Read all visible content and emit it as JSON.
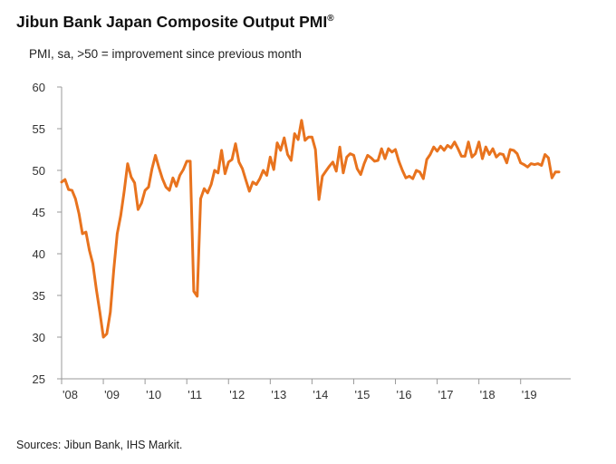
{
  "header": {
    "title": "Jibun Bank Japan Composite Output PMI",
    "title_mark": "®",
    "subtitle": "PMI, sa, >50 = improvement since previous month"
  },
  "footer": {
    "source": "Sources: Jibun Bank, IHS Markit."
  },
  "colors": {
    "line": "#e8731e",
    "axis": "#999999",
    "text": "#222222"
  },
  "chart_data": {
    "type": "line",
    "title": "Jibun Bank Japan Composite Output PMI",
    "subtitle": "PMI, sa, >50 = improvement since previous month",
    "xlabel": "",
    "ylabel": "",
    "ylim": [
      25,
      60
    ],
    "yticks": [
      25,
      30,
      35,
      40,
      45,
      50,
      55,
      60
    ],
    "xlim": [
      2008.0,
      2020.2
    ],
    "xticks": [
      {
        "label": "'08",
        "value": 2008
      },
      {
        "label": "'09",
        "value": 2009
      },
      {
        "label": "'10",
        "value": 2010
      },
      {
        "label": "'11",
        "value": 2011
      },
      {
        "label": "'12",
        "value": 2012
      },
      {
        "label": "'13",
        "value": 2013
      },
      {
        "label": "'14",
        "value": 2014
      },
      {
        "label": "'15",
        "value": 2015
      },
      {
        "label": "'16",
        "value": 2016
      },
      {
        "label": "'17",
        "value": 2017
      },
      {
        "label": "'18",
        "value": 2018
      },
      {
        "label": "'19",
        "value": 2019
      }
    ],
    "grid": false,
    "series": [
      {
        "name": "Composite Output PMI",
        "x": [
          2008.0,
          2008.083,
          2008.167,
          2008.25,
          2008.333,
          2008.417,
          2008.5,
          2008.583,
          2008.667,
          2008.75,
          2008.833,
          2008.917,
          2009.0,
          2009.083,
          2009.167,
          2009.25,
          2009.333,
          2009.417,
          2009.5,
          2009.583,
          2009.667,
          2009.75,
          2009.833,
          2009.917,
          2010.0,
          2010.083,
          2010.167,
          2010.25,
          2010.333,
          2010.417,
          2010.5,
          2010.583,
          2010.667,
          2010.75,
          2010.833,
          2010.917,
          2011.0,
          2011.083,
          2011.167,
          2011.25,
          2011.333,
          2011.417,
          2011.5,
          2011.583,
          2011.667,
          2011.75,
          2011.833,
          2011.917,
          2012.0,
          2012.083,
          2012.167,
          2012.25,
          2012.333,
          2012.417,
          2012.5,
          2012.583,
          2012.667,
          2012.75,
          2012.833,
          2012.917,
          2013.0,
          2013.083,
          2013.167,
          2013.25,
          2013.333,
          2013.417,
          2013.5,
          2013.583,
          2013.667,
          2013.75,
          2013.833,
          2013.917,
          2014.0,
          2014.083,
          2014.167,
          2014.25,
          2014.333,
          2014.417,
          2014.5,
          2014.583,
          2014.667,
          2014.75,
          2014.833,
          2014.917,
          2015.0,
          2015.083,
          2015.167,
          2015.25,
          2015.333,
          2015.417,
          2015.5,
          2015.583,
          2015.667,
          2015.75,
          2015.833,
          2015.917,
          2016.0,
          2016.083,
          2016.167,
          2016.25,
          2016.333,
          2016.417,
          2016.5,
          2016.583,
          2016.667,
          2016.75,
          2016.833,
          2016.917,
          2017.0,
          2017.083,
          2017.167,
          2017.25,
          2017.333,
          2017.417,
          2017.5,
          2017.583,
          2017.667,
          2017.75,
          2017.833,
          2017.917,
          2018.0,
          2018.083,
          2018.167,
          2018.25,
          2018.333,
          2018.417,
          2018.5,
          2018.583,
          2018.667,
          2018.75,
          2018.833,
          2018.917,
          2019.0,
          2019.083,
          2019.167,
          2019.25,
          2019.333,
          2019.417,
          2019.5,
          2019.583,
          2019.667,
          2019.75,
          2019.833,
          2019.917
        ],
        "values": [
          48.6,
          48.9,
          47.7,
          47.6,
          46.6,
          44.8,
          42.4,
          42.6,
          40.4,
          38.8,
          35.7,
          33.0,
          30.0,
          30.4,
          33.0,
          38.1,
          42.4,
          44.6,
          47.5,
          50.8,
          49.2,
          48.5,
          45.3,
          46.1,
          47.6,
          48.0,
          50.2,
          51.8,
          50.3,
          49.0,
          48.0,
          47.6,
          49.1,
          48.1,
          49.4,
          50.1,
          51.1,
          51.1,
          35.5,
          34.9,
          46.6,
          47.8,
          47.3,
          48.3,
          50.0,
          49.7,
          52.4,
          49.6,
          51.0,
          51.3,
          53.2,
          51.0,
          50.2,
          48.8,
          47.5,
          48.6,
          48.3,
          49.0,
          50.0,
          49.4,
          51.6,
          50.1,
          53.3,
          52.4,
          53.9,
          51.9,
          51.2,
          54.4,
          53.7,
          56.0,
          53.6,
          54.0,
          54.0,
          52.5,
          46.5,
          49.3,
          49.9,
          50.5,
          51.0,
          49.9,
          52.8,
          49.7,
          51.6,
          52.0,
          51.8,
          50.2,
          49.5,
          50.8,
          51.8,
          51.5,
          51.1,
          51.2,
          52.6,
          51.4,
          52.6,
          52.2,
          52.5,
          51.1,
          50.0,
          49.1,
          49.3,
          49.0,
          50.0,
          49.8,
          49.0,
          51.3,
          51.9,
          52.8,
          52.3,
          52.9,
          52.4,
          53.0,
          52.7,
          53.4,
          52.6,
          51.7,
          51.7,
          53.4,
          51.6,
          52.0,
          53.4,
          51.4,
          52.8,
          51.9,
          52.6,
          51.6,
          52.0,
          51.9,
          50.9,
          52.5,
          52.4,
          52.0,
          50.9,
          50.7,
          50.4,
          50.8,
          50.7,
          50.8,
          50.6,
          51.9,
          51.5,
          49.1,
          49.8,
          49.8
        ]
      }
    ]
  }
}
